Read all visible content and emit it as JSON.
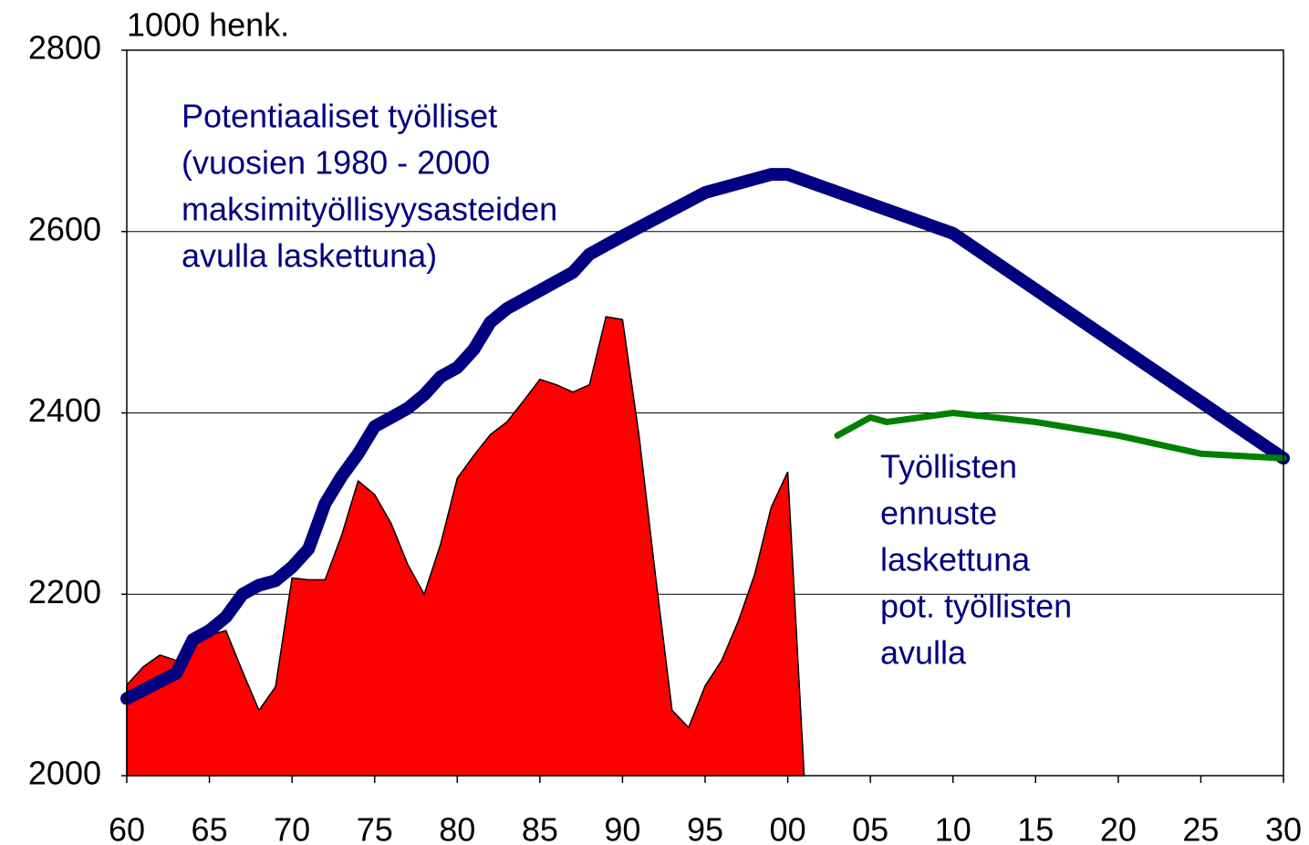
{
  "chart_data": {
    "type": "line",
    "y_unit_label": "1000 henk.",
    "xlim": [
      1960,
      2030
    ],
    "ylim": [
      2000,
      2800
    ],
    "yticks": [
      2000,
      2200,
      2400,
      2600,
      2800
    ],
    "xticks": [
      {
        "value": 1960,
        "label": "60"
      },
      {
        "value": 1965,
        "label": "65"
      },
      {
        "value": 1970,
        "label": "70"
      },
      {
        "value": 1975,
        "label": "75"
      },
      {
        "value": 1980,
        "label": "80"
      },
      {
        "value": 1985,
        "label": "85"
      },
      {
        "value": 1990,
        "label": "90"
      },
      {
        "value": 1995,
        "label": "95"
      },
      {
        "value": 2000,
        "label": "00"
      },
      {
        "value": 2005,
        "label": "05"
      },
      {
        "value": 2010,
        "label": "10"
      },
      {
        "value": 2015,
        "label": "15"
      },
      {
        "value": 2020,
        "label": "20"
      },
      {
        "value": 2025,
        "label": "25"
      },
      {
        "value": 2030,
        "label": "30"
      }
    ],
    "grid": true,
    "series": [
      {
        "type": "area",
        "color": "#ff0000",
        "x": [
          1960,
          1961,
          1962,
          1963,
          1964,
          1965,
          1966,
          1967,
          1968,
          1969,
          1970,
          1971,
          1972,
          1973,
          1974,
          1975,
          1976,
          1977,
          1978,
          1979,
          1980,
          1981,
          1982,
          1983,
          1984,
          1985,
          1986,
          1987,
          1988,
          1989,
          1990,
          1991,
          1992,
          1993,
          1994,
          1995,
          1996,
          1997,
          1998,
          1999,
          2000
        ],
        "values": [
          2100,
          2120,
          2133,
          2127,
          2147,
          2155,
          2160,
          2115,
          2072,
          2098,
          2218,
          2216,
          2216,
          2265,
          2325,
          2310,
          2278,
          2233,
          2200,
          2256,
          2328,
          2353,
          2376,
          2390,
          2413,
          2437,
          2431,
          2423,
          2431,
          2506,
          2503,
          2375,
          2220,
          2072,
          2053,
          2099,
          2127,
          2170,
          2222,
          2296,
          2335
        ]
      },
      {
        "type": "line",
        "color": "#000080",
        "x": [
          1960,
          1963,
          1964,
          1965,
          1966,
          1967,
          1968,
          1969,
          1970,
          1971,
          1972,
          1973,
          1974,
          1975,
          1976,
          1977,
          1978,
          1979,
          1980,
          1981,
          1982,
          1983,
          1984,
          1985,
          1986,
          1987,
          1988,
          1989,
          1990,
          1995,
          1999,
          2000,
          2010,
          2030
        ],
        "values": [
          2085,
          2113,
          2150,
          2160,
          2175,
          2200,
          2210,
          2215,
          2230,
          2250,
          2300,
          2330,
          2355,
          2385,
          2395,
          2405,
          2420,
          2440,
          2450,
          2470,
          2500,
          2515,
          2525,
          2535,
          2545,
          2555,
          2575,
          2585,
          2595,
          2643,
          2663,
          2663,
          2598,
          2350
        ]
      },
      {
        "type": "line",
        "color": "#008000",
        "x": [
          2003,
          2005,
          2006,
          2010,
          2015,
          2020,
          2025,
          2030
        ],
        "values": [
          2375,
          2395,
          2390,
          2400,
          2390,
          2375,
          2355,
          2350
        ]
      }
    ],
    "annotations": [
      {
        "color": "#000080",
        "lines": [
          "Potentiaaliset työlliset",
          "(vuosien 1980 - 2000",
          "maksimityöllisyysasteiden",
          "avulla laskettuna)"
        ]
      },
      {
        "color": "#000080",
        "lines": [
          "Työllisten",
          "ennuste",
          "laskettuna",
          "pot. työllisten",
          "avulla"
        ]
      }
    ]
  }
}
